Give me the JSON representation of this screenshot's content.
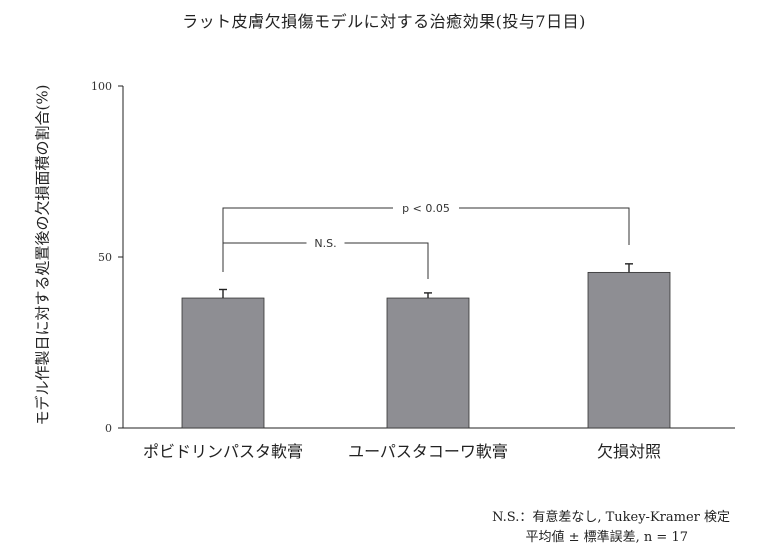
{
  "chart_data": {
    "type": "bar",
    "title": "ラット皮膚欠損傷モデルに対する治癒効果(投与7日目)",
    "ylabel": "モデル作製日に対する処置後の欠損面積の割合(%)",
    "xlabel": "",
    "categories": [
      "ポビドリンパスタ軟膏",
      "ユーパスタコーワ軟膏",
      "欠損対照"
    ],
    "values": [
      38,
      38,
      45.5
    ],
    "errors": [
      2.5,
      1.5,
      2.5
    ],
    "ylim": [
      0,
      100
    ],
    "yticks": [
      0,
      50,
      100
    ],
    "grid": false,
    "bar_color": "#8e8e93",
    "comparisons": [
      {
        "label": "p < 0.05",
        "from": 0,
        "to": 2
      },
      {
        "label": "N.S.",
        "from": 0,
        "to": 1
      }
    ],
    "footnotes": [
      "N.S.：有意差なし, Tukey-Kramer 検定",
      "平均値 ± 標準誤差, n = 17"
    ]
  }
}
